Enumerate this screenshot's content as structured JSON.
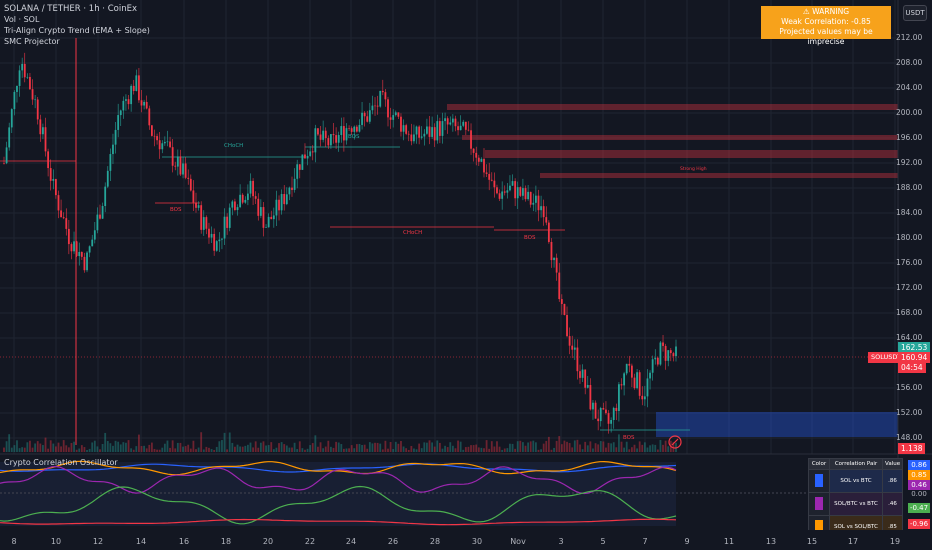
{
  "symbol_title": "SOLANA / TETHER · 1h · CoinEx",
  "indicators": [
    "Vol · SOL",
    "Tri-Align Crypto Trend (EMA + Slope)",
    "SMC Projector"
  ],
  "quote_currency": "USDT",
  "warning": {
    "line1": "⚠ WARNING",
    "line2": "Weak Correlation: -0.85",
    "line3": "Projected values may be imprecise"
  },
  "price_axis": [
    "212.00",
    "208.00",
    "204.00",
    "200.00",
    "196.00",
    "192.00",
    "188.00",
    "184.00",
    "180.00",
    "176.00",
    "172.00",
    "168.00",
    "164.00",
    "156.00",
    "152.00",
    "148.00"
  ],
  "price_tags": {
    "high": "162.53",
    "symbol_label": "SOLUSDT",
    "last": "160.94",
    "countdown": "04:54",
    "volume": "1.138"
  },
  "smc_labels": {
    "choch_1": "CHoCH",
    "bos_1": "BOS",
    "bos_2": "BOS",
    "choch_2": "CHoCH",
    "bos_3": "BOS",
    "bos_4": "BOS",
    "strong_high": "Strong High"
  },
  "oscillator": {
    "title": "Crypto Correlation Oscillator",
    "axis_values": [
      "0.86",
      "0.85",
      "0.46",
      "0.00",
      "-0.47",
      "-0.96"
    ],
    "colors": {
      "blue": "#2962ff",
      "orange": "#ff9800",
      "purple": "#9c27b0",
      "green": "#4caf50",
      "red": "#f23645"
    }
  },
  "correlation_table": {
    "headers": [
      "Color",
      "Correlation Pair",
      "Value"
    ],
    "rows": [
      {
        "pair": "SOL vs BTC",
        "value": ".86",
        "color": "#2962ff"
      },
      {
        "pair": "SOL/BTC vs BTC",
        "value": ".46",
        "color": "#9c27b0"
      },
      {
        "pair": "SOL vs SOL/BTC",
        "value": ".85",
        "color": "#ff9800"
      }
    ]
  },
  "time_axis": [
    "8",
    "10",
    "12",
    "14",
    "16",
    "18",
    "20",
    "22",
    "24",
    "26",
    "28",
    "30",
    "Nov",
    "3",
    "5",
    "7",
    "9",
    "11",
    "13",
    "15",
    "17",
    "19"
  ],
  "chart_data": {
    "type": "candlestick",
    "symbol": "SOLUSDT",
    "ylim": [
      146,
      214
    ],
    "approx_close_path": [
      192,
      209,
      201,
      188,
      180,
      176,
      186,
      200,
      205,
      197,
      194,
      190,
      183,
      179,
      186,
      188,
      182,
      186,
      192,
      196,
      195,
      198,
      199,
      202,
      199,
      196,
      197,
      198,
      197,
      193,
      187,
      188,
      186,
      185,
      168,
      160,
      152,
      150,
      160,
      155,
      162,
      161
    ]
  }
}
